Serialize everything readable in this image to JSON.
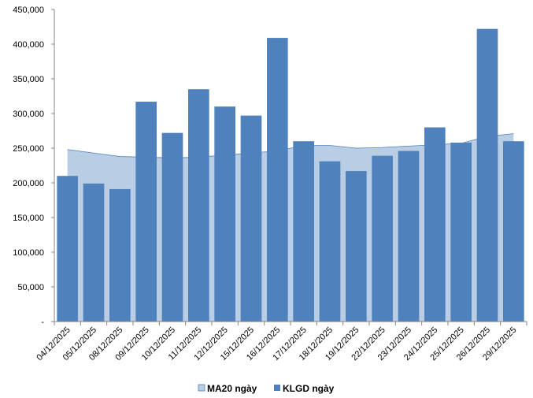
{
  "chart_data": {
    "type": "bar",
    "categories": [
      "04/12/2025",
      "05/12/2025",
      "08/12/2025",
      "09/12/2025",
      "10/12/2025",
      "11/12/2025",
      "12/12/2025",
      "15/12/2025",
      "16/12/2025",
      "17/12/2025",
      "18/12/2025",
      "19/12/2025",
      "22/12/2025",
      "23/12/2025",
      "24/12/2025",
      "25/12/2025",
      "26/12/2025",
      "29/12/2025"
    ],
    "series": [
      {
        "name": "MA20 ngày",
        "type": "area",
        "color": "#b9cde5",
        "stroke": "#4f81bd",
        "values": [
          248000,
          243000,
          238000,
          237000,
          236000,
          237000,
          240000,
          243000,
          246000,
          254000,
          254000,
          250000,
          251000,
          253000,
          255000,
          257000,
          267000,
          271000
        ]
      },
      {
        "name": "KLGD ngày",
        "type": "bar",
        "color": "#4f81bd",
        "values": [
          210000,
          199000,
          191000,
          317000,
          272000,
          335000,
          310000,
          297000,
          409000,
          260000,
          231000,
          217000,
          239000,
          246000,
          280000,
          258000,
          422000,
          260000
        ]
      }
    ],
    "y_ticks": [
      "-",
      "50,000",
      "100,000",
      "150,000",
      "200,000",
      "250,000",
      "300,000",
      "350,000",
      "400,000",
      "450,000"
    ],
    "ylim": [
      0,
      450000
    ],
    "grid": false,
    "legend_position": "bottom",
    "title": "",
    "xlabel": "",
    "ylabel": ""
  }
}
